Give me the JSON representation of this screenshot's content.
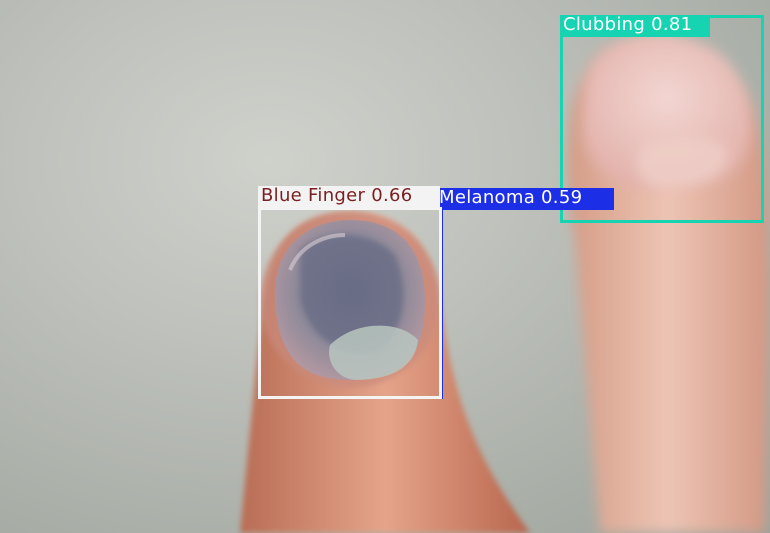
{
  "image": {
    "description_tags": [
      "finger",
      "fingernail",
      "thumb",
      "object-detection-overlay"
    ]
  },
  "detections": [
    {
      "id": "clubbing",
      "label": "Clubbing",
      "confidence": "0.81",
      "color": "#16d3b2"
    },
    {
      "id": "blue-finger",
      "label": "Blue Finger",
      "confidence": "0.66",
      "color": "#f3f3f3",
      "text_color": "#7a1f1f"
    },
    {
      "id": "melanoma",
      "label": "Melanoma",
      "confidence": "0.59",
      "color": "#1c2fe6"
    }
  ],
  "labels": {
    "clubbing": "Clubbing 0.81",
    "blue_finger": "Blue Finger 0.66",
    "melanoma": "Melanoma 0.59"
  }
}
